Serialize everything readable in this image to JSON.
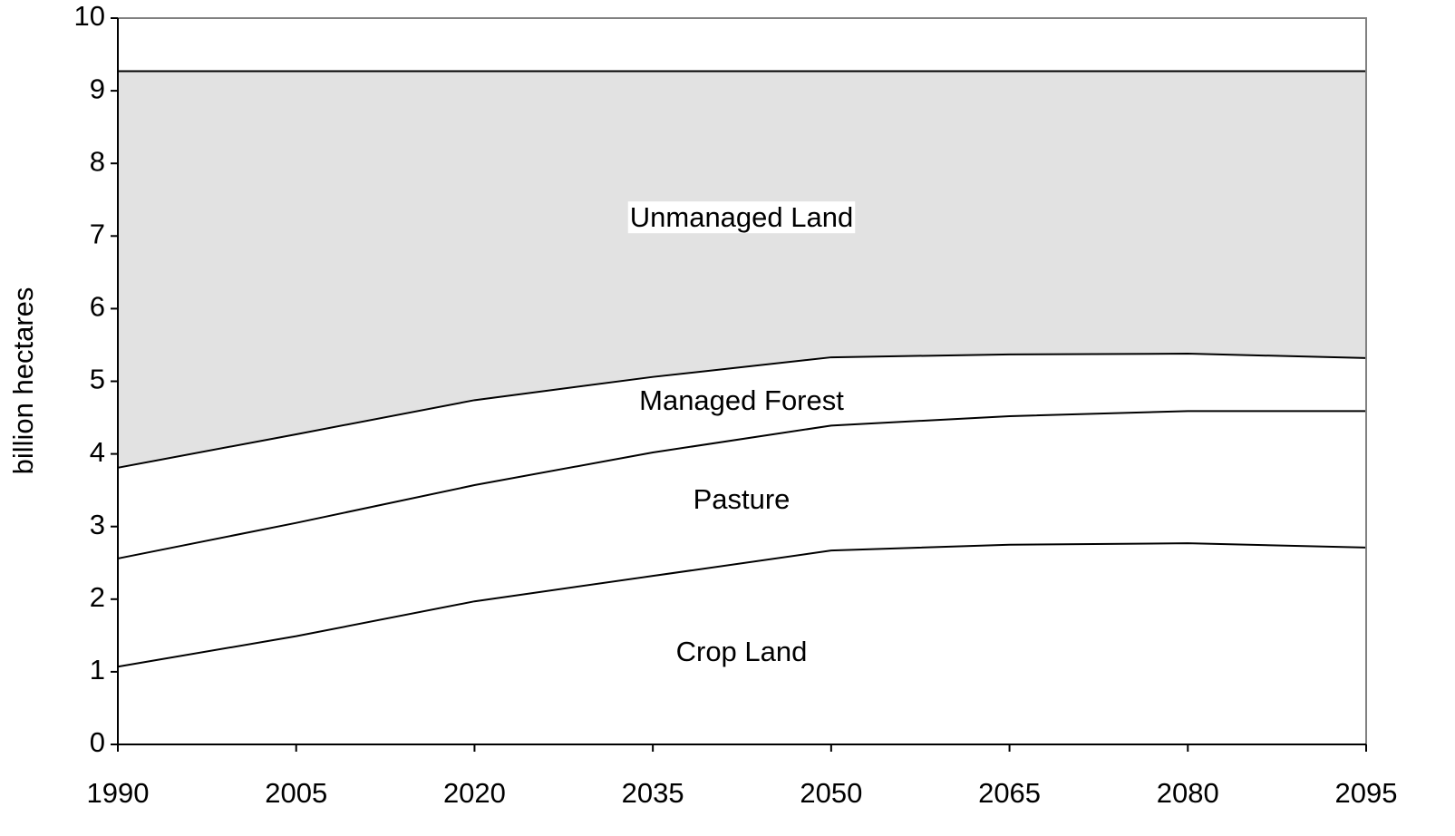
{
  "chart_data": {
    "type": "stacked_area",
    "y_label": "billion hectares",
    "x": [
      1990,
      2005,
      2020,
      2035,
      2050,
      2065,
      2080,
      2095
    ],
    "xlim": [
      1990,
      2095
    ],
    "xticks": [
      1990,
      2005,
      2020,
      2035,
      2050,
      2065,
      2080,
      2095
    ],
    "ylim": [
      0,
      10
    ],
    "yticks": [
      0,
      1,
      2,
      3,
      4,
      5,
      6,
      7,
      8,
      9,
      10
    ],
    "series": [
      {
        "name": "Crop Land",
        "color": "#ffffff",
        "values": [
          1.07,
          1.49,
          1.97,
          2.32,
          2.67,
          2.75,
          2.77,
          2.71
        ]
      },
      {
        "name": "Pasture",
        "color": "#ffffff",
        "values": [
          1.49,
          1.56,
          1.6,
          1.7,
          1.72,
          1.77,
          1.82,
          1.88
        ]
      },
      {
        "name": "Managed Forest",
        "color": "#ffffff",
        "values": [
          1.25,
          1.22,
          1.17,
          1.04,
          0.94,
          0.85,
          0.79,
          0.73
        ]
      },
      {
        "name": "Unmanaged Land",
        "color": "#e2e2e2",
        "values": [
          5.46,
          5.0,
          4.53,
          4.21,
          3.94,
          3.9,
          3.89,
          3.95
        ]
      }
    ]
  }
}
